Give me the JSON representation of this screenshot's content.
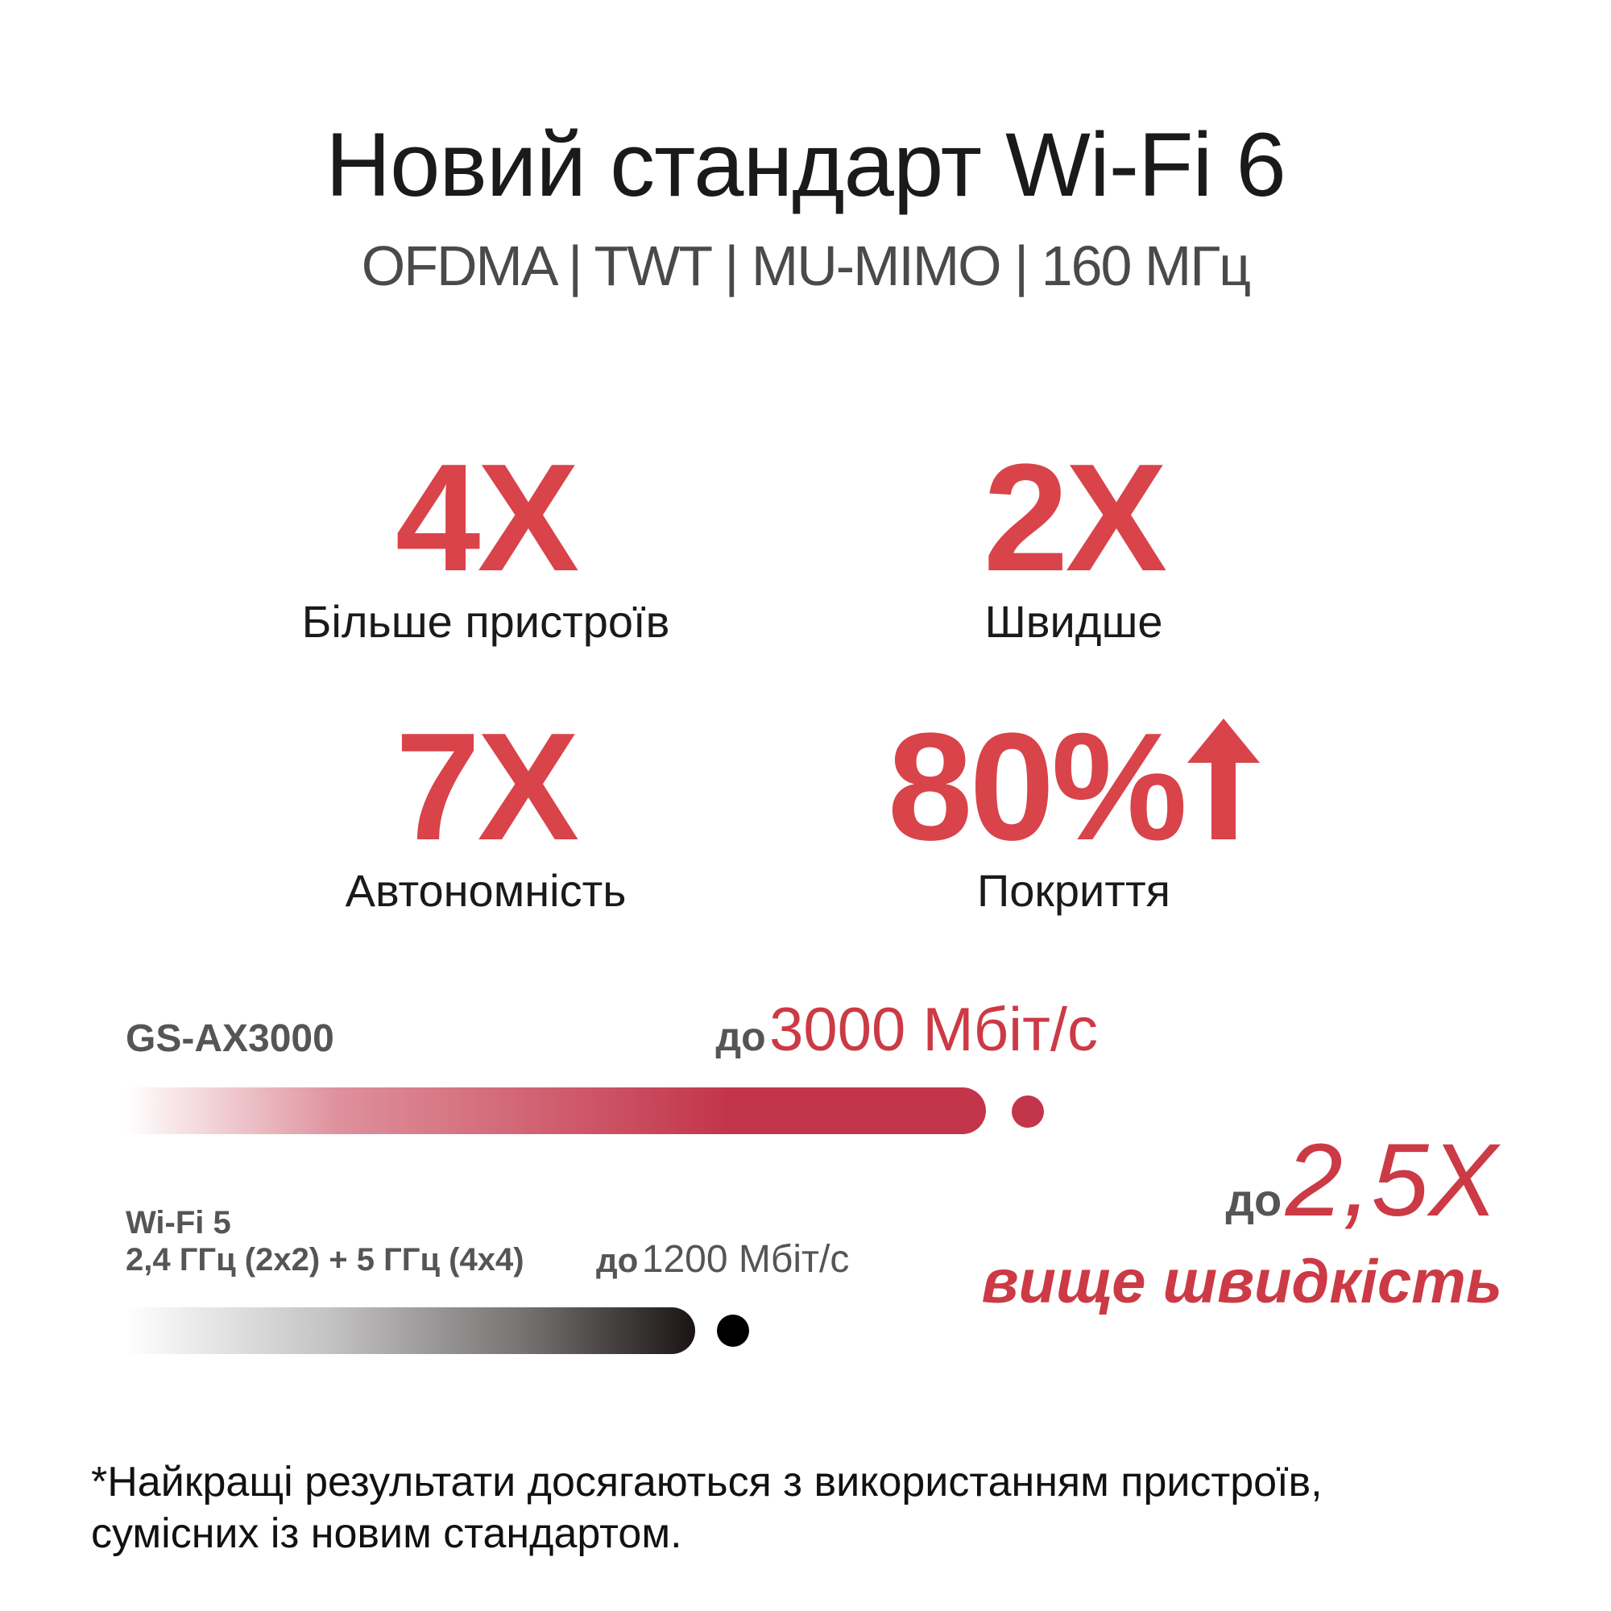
{
  "header": {
    "title": "Новий стандарт Wi-Fi 6",
    "subtitle": "OFDMA | TWT | MU-MIMO | 160 МГц"
  },
  "stats": [
    {
      "value": "4X",
      "label": "Більше пристроїв"
    },
    {
      "value": "2X",
      "label": "Швидше"
    },
    {
      "value": "7X",
      "label": "Автономність"
    },
    {
      "value": "80%",
      "label": "Покриття",
      "icon": "arrow-up-icon"
    }
  ],
  "comparison": {
    "product": {
      "name": "GS-AX3000",
      "prefix": "до",
      "speed": "3000 Мбіт/с",
      "mbps": 3000,
      "color": "#c3354a"
    },
    "legacy": {
      "name": "Wi-Fi 5",
      "bands": "2,4 ГГц (2x2) + 5 ГГц (4x4)",
      "prefix": "до",
      "speed": "1200 Мбіт/с",
      "mbps": 1200,
      "color": "#1a1414"
    },
    "gain": {
      "prefix": "до",
      "value": "2,5X",
      "caption": "вище швидкість"
    }
  },
  "accent_color": "#d9434a",
  "footnote": {
    "line1": "*Найкращі результати досягаються з використанням пристроїв,",
    "line2": "сумісних із новим стандартом."
  }
}
